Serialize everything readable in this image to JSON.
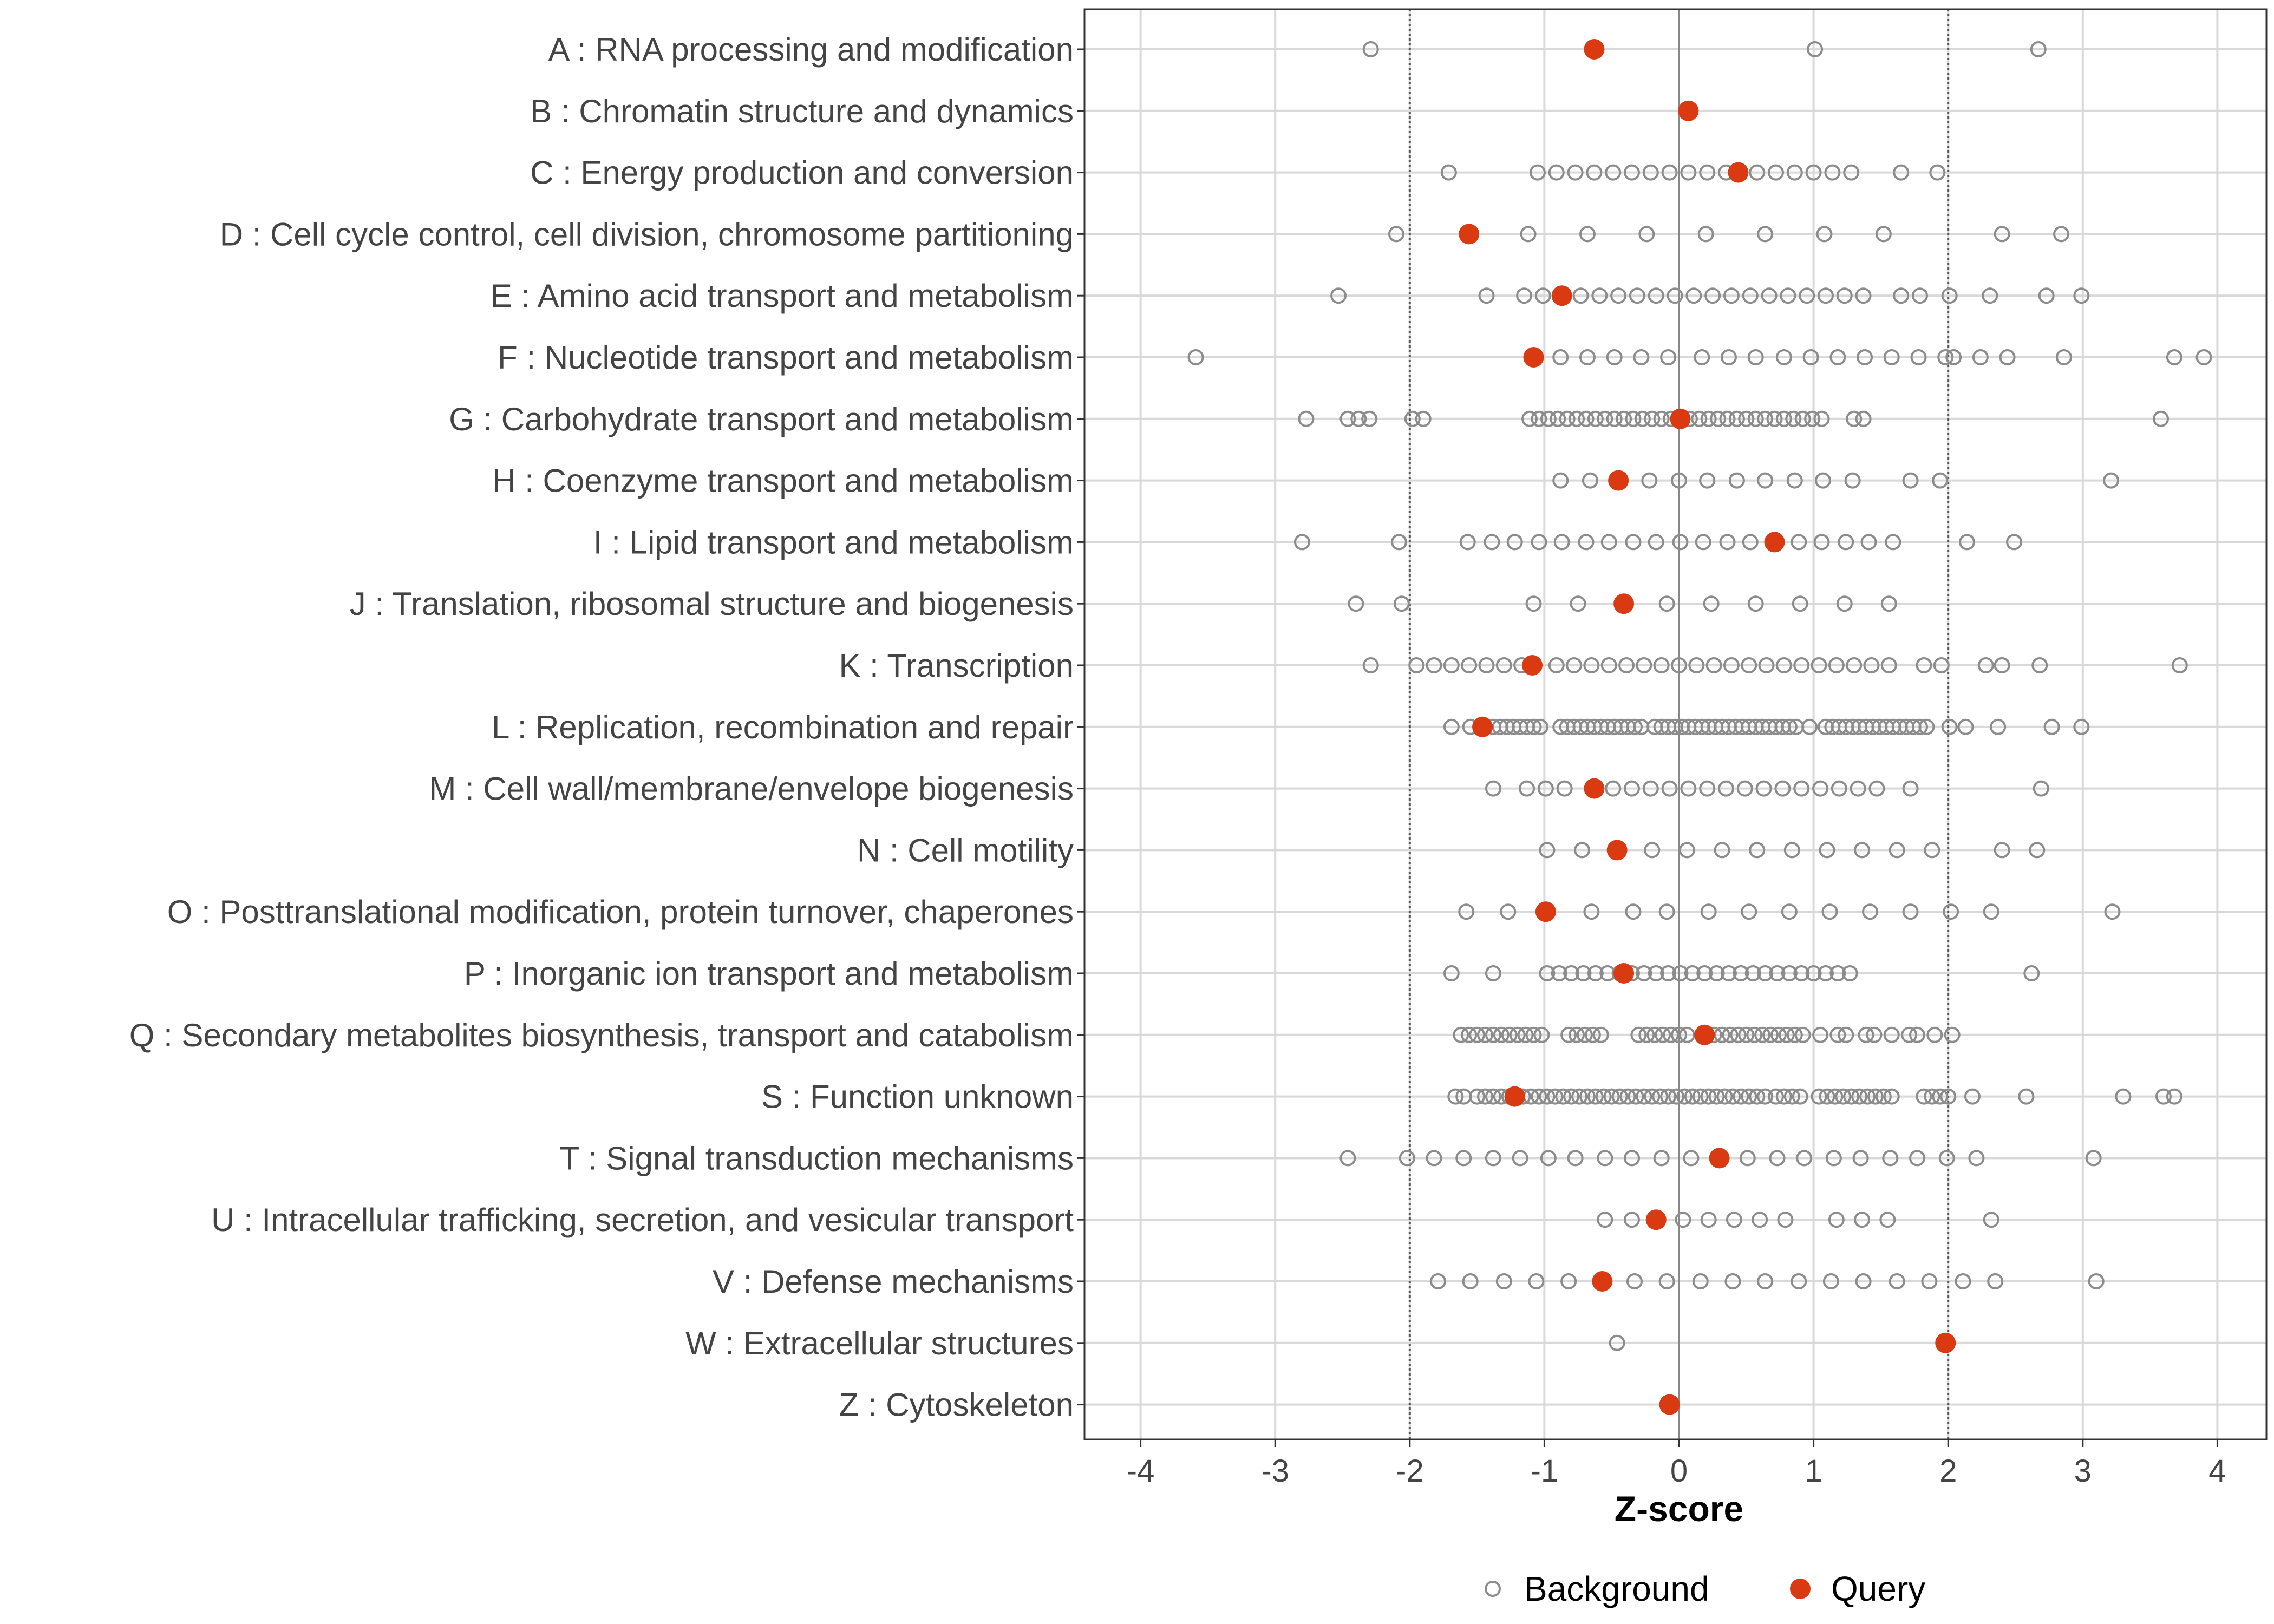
{
  "chart_data": {
    "type": "scatter",
    "title": "",
    "xlabel": "Z-score",
    "ylabel": "",
    "xlim": [
      -4.4,
      4.4
    ],
    "x_ticks": [
      -4,
      -3,
      -2,
      -1,
      0,
      1,
      2,
      3,
      4
    ],
    "x_tick_labels": [
      "-4",
      "-3",
      "-2",
      "-1",
      "0",
      "1",
      "2",
      "3",
      "4"
    ],
    "reference_lines": [
      {
        "x": -2,
        "style": "dotted"
      },
      {
        "x": 0,
        "style": "solid"
      },
      {
        "x": 2,
        "style": "dotted"
      }
    ],
    "grid": true,
    "legend": {
      "position": "bottom",
      "entries": [
        {
          "name": "Background",
          "marker": "open-circle",
          "color": "#8c8c8c"
        },
        {
          "name": "Query",
          "marker": "filled-circle",
          "color": "#d93a12"
        }
      ]
    },
    "categories": [
      "A : RNA processing and modification",
      "B : Chromatin structure and dynamics",
      "C : Energy production and conversion",
      "D : Cell cycle control, cell division, chromosome partitioning",
      "E : Amino acid transport and metabolism",
      "F : Nucleotide transport and metabolism",
      "G : Carbohydrate transport and metabolism",
      "H : Coenzyme transport and metabolism",
      "I : Lipid transport and metabolism",
      "J : Translation, ribosomal structure and biogenesis",
      "K : Transcription",
      "L : Replication, recombination and repair",
      "M : Cell wall/membrane/envelope biogenesis",
      "N : Cell motility",
      "O : Posttranslational modification, protein turnover, chaperones",
      "P : Inorganic ion transport and metabolism",
      "Q : Secondary metabolites biosynthesis, transport and catabolism",
      "S : Function unknown",
      "T : Signal transduction mechanisms",
      "U : Intracellular trafficking, secretion, and vesicular transport",
      "V : Defense mechanisms",
      "W : Extracellular structures",
      "Z : Cytoskeleton"
    ],
    "series": [
      {
        "name": "Query",
        "values": [
          -0.63,
          0.07,
          0.44,
          -1.56,
          -0.87,
          -1.08,
          0.01,
          -0.45,
          0.71,
          -0.41,
          -1.09,
          -1.46,
          -0.63,
          -0.46,
          -0.99,
          -0.41,
          0.19,
          -1.22,
          0.3,
          -0.17,
          -0.57,
          1.98,
          -0.07
        ]
      },
      {
        "name": "Background",
        "values": [
          [
            -2.29,
            1.01,
            2.67
          ],
          [
            0.07
          ],
          [
            -1.71,
            -1.05,
            -0.91,
            -0.77,
            -0.63,
            -0.49,
            -0.35,
            -0.21,
            -0.07,
            0.07,
            0.21,
            0.35,
            0.58,
            0.72,
            0.86,
            1.0,
            1.14,
            1.28,
            1.65,
            1.92
          ],
          [
            -2.1,
            -1.12,
            -0.68,
            -0.24,
            0.2,
            0.64,
            1.08,
            1.52,
            2.4,
            2.84
          ],
          [
            -2.53,
            -1.43,
            -1.15,
            -1.01,
            -0.73,
            -0.59,
            -0.45,
            -0.31,
            -0.17,
            -0.03,
            0.11,
            0.25,
            0.39,
            0.53,
            0.67,
            0.81,
            0.95,
            1.09,
            1.23,
            1.37,
            1.65,
            1.79,
            2.01,
            2.31,
            2.73,
            2.99
          ],
          [
            -3.59,
            -0.88,
            -0.68,
            -0.48,
            -0.28,
            -0.08,
            0.17,
            0.37,
            0.57,
            0.78,
            0.98,
            1.18,
            1.38,
            1.58,
            1.78,
            1.98,
            2.04,
            2.24,
            2.44,
            2.86,
            3.68,
            3.9
          ],
          [
            -2.77,
            -2.46,
            -2.38,
            -2.3,
            -1.98,
            -1.9,
            -1.11,
            -1.04,
            -0.97,
            -0.9,
            -0.83,
            -0.76,
            -0.69,
            -0.62,
            -0.55,
            -0.48,
            -0.41,
            -0.34,
            -0.27,
            -0.2,
            -0.13,
            -0.06,
            0.08,
            0.15,
            0.22,
            0.29,
            0.36,
            0.43,
            0.5,
            0.57,
            0.64,
            0.71,
            0.78,
            0.85,
            0.92,
            0.99,
            1.06,
            1.3,
            1.37,
            3.58
          ],
          [
            -0.88,
            -0.66,
            -0.22,
            0.0,
            0.21,
            0.43,
            0.64,
            0.86,
            1.07,
            1.29,
            1.72,
            1.94,
            3.21
          ],
          [
            -2.8,
            -2.08,
            -1.57,
            -1.39,
            -1.22,
            -1.04,
            -0.87,
            -0.69,
            -0.52,
            -0.34,
            -0.17,
            0.01,
            0.18,
            0.36,
            0.53,
            0.89,
            1.06,
            1.24,
            1.41,
            1.59,
            2.14,
            2.49
          ],
          [
            -2.4,
            -2.06,
            -1.08,
            -0.75,
            -0.09,
            0.24,
            0.57,
            0.9,
            1.23,
            1.56
          ],
          [
            -2.29,
            -1.95,
            -1.82,
            -1.69,
            -1.56,
            -1.43,
            -1.3,
            -1.17,
            -0.91,
            -0.78,
            -0.65,
            -0.52,
            -0.39,
            -0.26,
            -0.13,
            0.0,
            0.13,
            0.26,
            0.39,
            0.52,
            0.65,
            0.78,
            0.91,
            1.04,
            1.17,
            1.3,
            1.43,
            1.56,
            1.82,
            1.95,
            2.28,
            2.4,
            2.68,
            3.72
          ],
          [
            -1.69,
            -1.55,
            -1.38,
            -1.33,
            -1.28,
            -1.23,
            -1.18,
            -1.13,
            -1.08,
            -1.03,
            -0.88,
            -0.83,
            -0.78,
            -0.73,
            -0.68,
            -0.63,
            -0.58,
            -0.53,
            -0.48,
            -0.43,
            -0.38,
            -0.33,
            -0.28,
            -0.18,
            -0.13,
            -0.08,
            -0.03,
            0.02,
            0.07,
            0.12,
            0.17,
            0.22,
            0.27,
            0.32,
            0.37,
            0.42,
            0.47,
            0.52,
            0.57,
            0.62,
            0.67,
            0.72,
            0.77,
            0.82,
            0.87,
            0.97,
            1.09,
            1.14,
            1.19,
            1.24,
            1.29,
            1.34,
            1.39,
            1.44,
            1.49,
            1.54,
            1.59,
            1.64,
            1.69,
            1.74,
            1.79,
            1.84,
            2.01,
            2.13,
            2.37,
            2.77,
            2.99
          ],
          [
            -1.38,
            -1.13,
            -0.99,
            -0.85,
            -0.49,
            -0.35,
            -0.21,
            -0.07,
            0.07,
            0.21,
            0.35,
            0.49,
            0.63,
            0.77,
            0.91,
            1.05,
            1.19,
            1.33,
            1.47,
            1.72,
            2.69
          ],
          [
            -0.98,
            -0.72,
            -0.2,
            0.06,
            0.32,
            0.58,
            0.84,
            1.1,
            1.36,
            1.62,
            1.88,
            2.4,
            2.66
          ],
          [
            -1.58,
            -1.27,
            -0.65,
            -0.34,
            -0.09,
            0.22,
            0.52,
            0.82,
            1.12,
            1.42,
            1.72,
            2.02,
            2.32,
            3.22
          ],
          [
            -1.69,
            -1.38,
            -0.98,
            -0.89,
            -0.8,
            -0.71,
            -0.62,
            -0.53,
            -0.44,
            -0.35,
            -0.26,
            -0.17,
            -0.08,
            0.01,
            0.1,
            0.19,
            0.28,
            0.37,
            0.46,
            0.55,
            0.64,
            0.73,
            0.82,
            0.91,
            1.0,
            1.09,
            1.18,
            1.27,
            2.62
          ],
          [
            -1.62,
            -1.56,
            -1.5,
            -1.44,
            -1.38,
            -1.32,
            -1.26,
            -1.2,
            -1.14,
            -1.08,
            -1.02,
            -0.82,
            -0.76,
            -0.7,
            -0.64,
            -0.58,
            -0.3,
            -0.24,
            -0.18,
            -0.12,
            -0.06,
            0.0,
            0.06,
            0.26,
            0.32,
            0.38,
            0.44,
            0.5,
            0.56,
            0.62,
            0.68,
            0.74,
            0.8,
            0.86,
            0.92,
            1.05,
            1.18,
            1.24,
            1.39,
            1.45,
            1.58,
            1.71,
            1.77,
            1.9,
            2.03
          ],
          [
            -1.66,
            -1.6,
            -1.5,
            -1.44,
            -1.38,
            -1.32,
            -1.26,
            -1.16,
            -1.1,
            -1.04,
            -0.98,
            -0.92,
            -0.86,
            -0.8,
            -0.74,
            -0.68,
            -0.62,
            -0.56,
            -0.5,
            -0.44,
            -0.38,
            -0.32,
            -0.26,
            -0.2,
            -0.14,
            -0.08,
            -0.02,
            0.04,
            0.1,
            0.16,
            0.22,
            0.28,
            0.34,
            0.4,
            0.46,
            0.52,
            0.58,
            0.64,
            0.72,
            0.78,
            0.84,
            0.9,
            1.04,
            1.1,
            1.16,
            1.22,
            1.28,
            1.34,
            1.4,
            1.46,
            1.52,
            1.58,
            1.82,
            1.88,
            1.94,
            2.0,
            2.18,
            2.58,
            3.3,
            3.6,
            3.68
          ],
          [
            -2.46,
            -2.02,
            -1.82,
            -1.6,
            -1.38,
            -1.18,
            -0.97,
            -0.77,
            -0.55,
            -0.35,
            -0.13,
            0.09,
            0.51,
            0.73,
            0.93,
            1.15,
            1.35,
            1.57,
            1.77,
            1.99,
            2.21,
            3.08
          ],
          [
            -0.55,
            -0.35,
            0.03,
            0.22,
            0.41,
            0.6,
            0.79,
            1.17,
            1.36,
            1.55,
            2.32
          ],
          [
            -1.79,
            -1.55,
            -1.3,
            -1.06,
            -0.82,
            -0.33,
            -0.09,
            0.16,
            0.4,
            0.64,
            0.89,
            1.13,
            1.37,
            1.62,
            1.86,
            2.11,
            2.35,
            3.1
          ],
          [
            -0.46,
            1.98
          ],
          []
        ]
      }
    ]
  }
}
